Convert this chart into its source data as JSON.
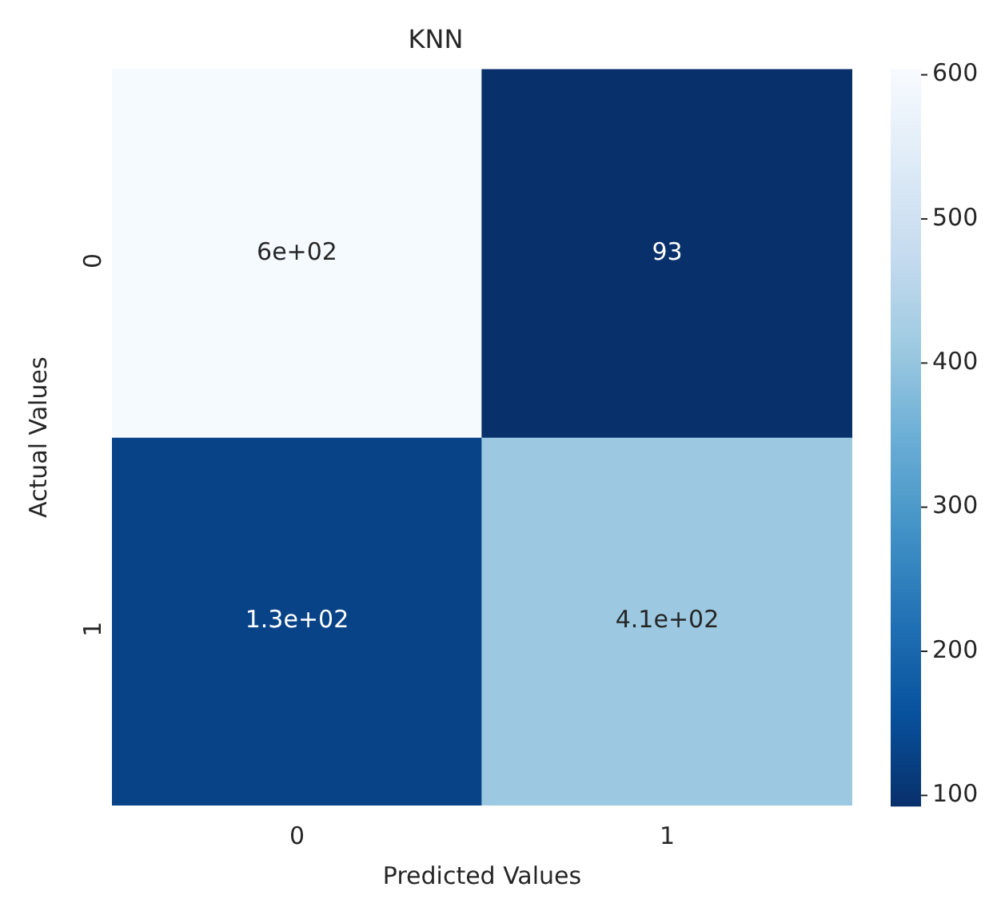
{
  "chart_data": {
    "type": "heatmap",
    "title": "KNN",
    "xlabel": "Predicted Values",
    "ylabel": "Actual Values",
    "categories": [
      "0",
      "1"
    ],
    "y_categories": [
      "0",
      "1"
    ],
    "cells": [
      [
        600,
        93
      ],
      [
        130,
        410
      ]
    ],
    "cell_labels": [
      [
        "6e+02",
        "93"
      ],
      [
        "1.3e+02",
        "4.1e+02"
      ]
    ],
    "clim": [
      93,
      604
    ],
    "cticks": [
      100,
      200,
      300,
      400,
      500,
      600
    ]
  }
}
